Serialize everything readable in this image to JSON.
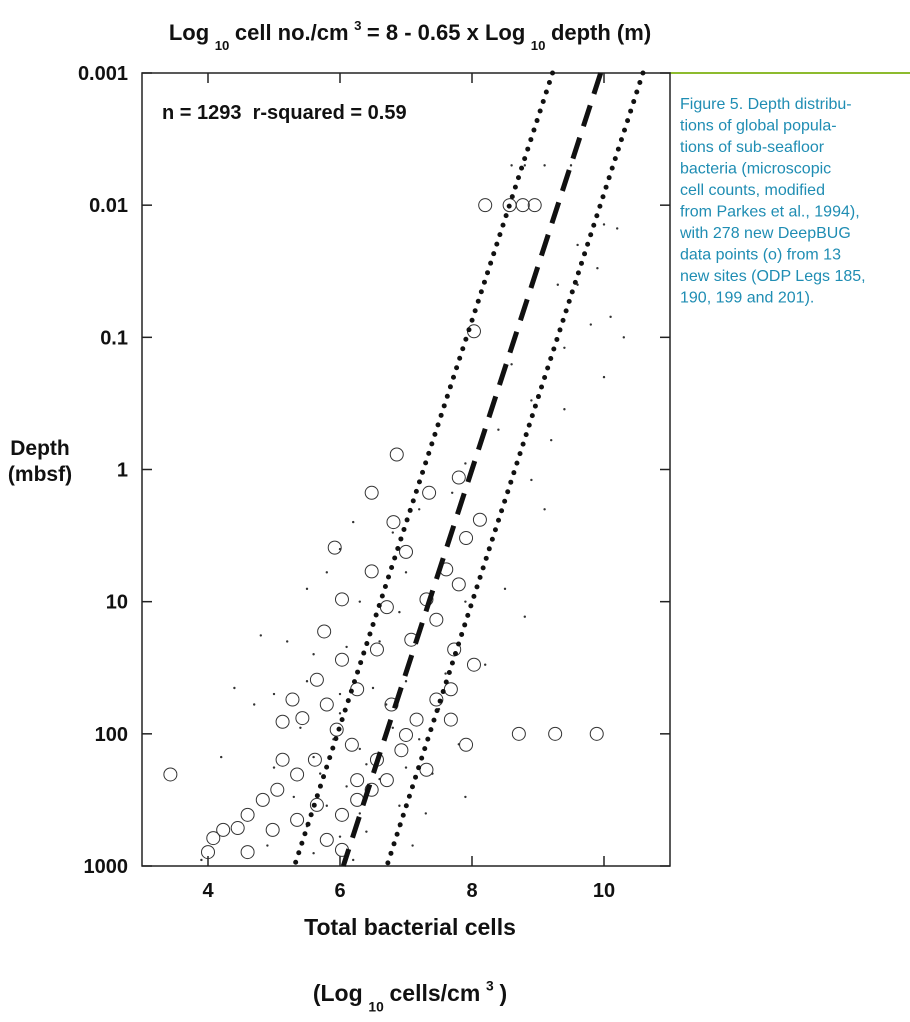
{
  "chart_data": {
    "type": "scatter",
    "title": [
      {
        "text": "Log"
      },
      {
        "text": "10",
        "shift": "sub"
      },
      {
        "text": "cell no./cm"
      },
      {
        "text": "3",
        "shift": "sup"
      },
      {
        "text": "= 8 - 0.65 x Log"
      },
      {
        "text": "10",
        "shift": "sub"
      },
      {
        "text": "depth (m)"
      }
    ],
    "annotation": "n = 1293  r-squared = 0.59",
    "ylabel": [
      "Depth",
      "(mbsf)"
    ],
    "xlabel": [
      [
        {
          "text": "Total bacterial cells"
        }
      ],
      [
        {
          "text": "(Log"
        },
        {
          "text": "10",
          "shift": "sub"
        },
        {
          "text": "cells/cm"
        },
        {
          "text": "3",
          "shift": "sup"
        },
        {
          "text": ")"
        }
      ]
    ],
    "xlim": [
      3,
      11
    ],
    "xticks": [
      4,
      6,
      8,
      10
    ],
    "ylim": [
      0.001,
      1000
    ],
    "yticks": [
      0.001,
      0.01,
      0.1,
      1,
      10,
      100,
      1000
    ],
    "ylog": true,
    "y_inverted": true,
    "fit_lines": [
      {
        "style": "dashed",
        "x": [
          9.95,
          6.05
        ],
        "y": [
          0.001,
          1000
        ]
      },
      {
        "style": "dotted",
        "x": [
          9.22,
          5.31
        ],
        "y": [
          0.001,
          1000
        ]
      },
      {
        "style": "dotted",
        "x": [
          10.59,
          6.71
        ],
        "y": [
          0.001,
          1000
        ]
      }
    ],
    "series": [
      {
        "marker": "open-circle",
        "color": "#333333",
        "x": [
          8.71,
          9.26,
          9.89,
          8.2,
          8.57,
          8.77,
          8.95,
          8.03,
          6.86,
          6.48,
          7.35,
          7.8,
          8.12,
          7.91,
          6.81,
          5.92,
          7.0,
          7.8,
          6.48,
          6.03,
          5.76,
          6.71,
          7.61,
          7.31,
          7.46,
          7.73,
          8.03,
          7.08,
          6.56,
          6.03,
          5.65,
          5.28,
          5.43,
          5.13,
          5.8,
          6.26,
          6.78,
          7.16,
          7.46,
          7.68,
          5.95,
          6.18,
          6.56,
          6.93,
          7.31,
          5.62,
          5.35,
          5.05,
          4.83,
          4.6,
          4.45,
          4.23,
          4.08,
          4.0,
          4.6,
          3.43,
          4.98,
          5.35,
          5.65,
          6.03,
          6.26,
          6.48,
          6.03,
          5.8,
          5.13,
          6.26,
          6.71,
          7.0,
          7.68,
          7.91
        ],
        "y": [
          100,
          100,
          100,
          0.01,
          0.01,
          0.01,
          0.01,
          0.09,
          0.77,
          1.5,
          1.5,
          1.15,
          2.4,
          3.3,
          2.5,
          3.9,
          4.2,
          7.4,
          5.9,
          9.6,
          16.8,
          11,
          5.7,
          9.6,
          13.7,
          23,
          30,
          19.4,
          23,
          27.5,
          39,
          55,
          76,
          81,
          60,
          46,
          60,
          78,
          55,
          46,
          93,
          121,
          157,
          133,
          187,
          157,
          203,
          265,
          316,
          410,
          516,
          533,
          615,
          785,
          785,
          203,
          533,
          448,
          345,
          410,
          316,
          265,
          755,
          635,
          157,
          224,
          224,
          102,
          78,
          121
        ]
      },
      {
        "marker": "dot",
        "color": "#333333",
        "x": [
          8.6,
          8.8,
          9.1,
          9.5,
          9.6,
          10.0,
          9.9,
          10.2,
          9.3,
          9.6,
          10.1,
          10.3,
          9.4,
          9.8,
          10.0,
          8.6,
          8.9,
          9.4,
          9.2,
          8.4,
          7.9,
          8.9,
          9.1,
          7.7,
          7.2,
          6.8,
          6.2,
          6.0,
          7.0,
          5.8,
          5.5,
          6.3,
          6.9,
          7.4,
          7.9,
          8.5,
          8.8,
          7.2,
          6.6,
          6.1,
          5.6,
          5.2,
          4.8,
          4.4,
          5.0,
          5.5,
          6.0,
          6.5,
          7.0,
          7.6,
          8.2,
          5.4,
          5.9,
          6.3,
          6.8,
          7.2,
          7.8,
          4.2,
          5.0,
          5.7,
          6.1,
          6.6,
          7.0,
          7.4,
          7.9,
          5.3,
          5.8,
          6.3,
          6.9,
          7.3,
          5.5,
          6.0,
          6.4,
          6.9,
          4.9,
          5.6,
          6.2,
          7.1,
          3.9,
          4.7,
          6.0,
          6.7,
          7.5,
          5.6,
          6.4
        ],
        "y": [
          0.005,
          0.005,
          0.005,
          0.005,
          0.02,
          0.014,
          0.03,
          0.015,
          0.04,
          0.04,
          0.07,
          0.1,
          0.12,
          0.08,
          0.2,
          0.16,
          0.3,
          0.35,
          0.6,
          0.5,
          0.9,
          1.2,
          2,
          1.5,
          2,
          3,
          2.5,
          4,
          6,
          6,
          8,
          10,
          12,
          9,
          10,
          8,
          13,
          18,
          20,
          22,
          25,
          20,
          18,
          45,
          50,
          40,
          50,
          45,
          40,
          35,
          30,
          90,
          110,
          130,
          90,
          110,
          120,
          150,
          180,
          200,
          250,
          220,
          180,
          200,
          300,
          300,
          350,
          400,
          350,
          400,
          500,
          600,
          550,
          500,
          700,
          800,
          900,
          700,
          900,
          60,
          70,
          60,
          65,
          150,
          170
        ]
      }
    ]
  },
  "caption": {
    "color": "#1f8db3",
    "lines": [
      "Figure 5. Depth distribu-",
      "tions of global popula-",
      "tions of sub-seafloor",
      "bacteria (microscopic",
      "cell counts, modified",
      "from Parkes et al., 1994),",
      "with 278 new DeepBUG",
      "data points (o) from 13",
      "new sites (ODP Legs 185,",
      "190, 199 and 201)."
    ]
  }
}
